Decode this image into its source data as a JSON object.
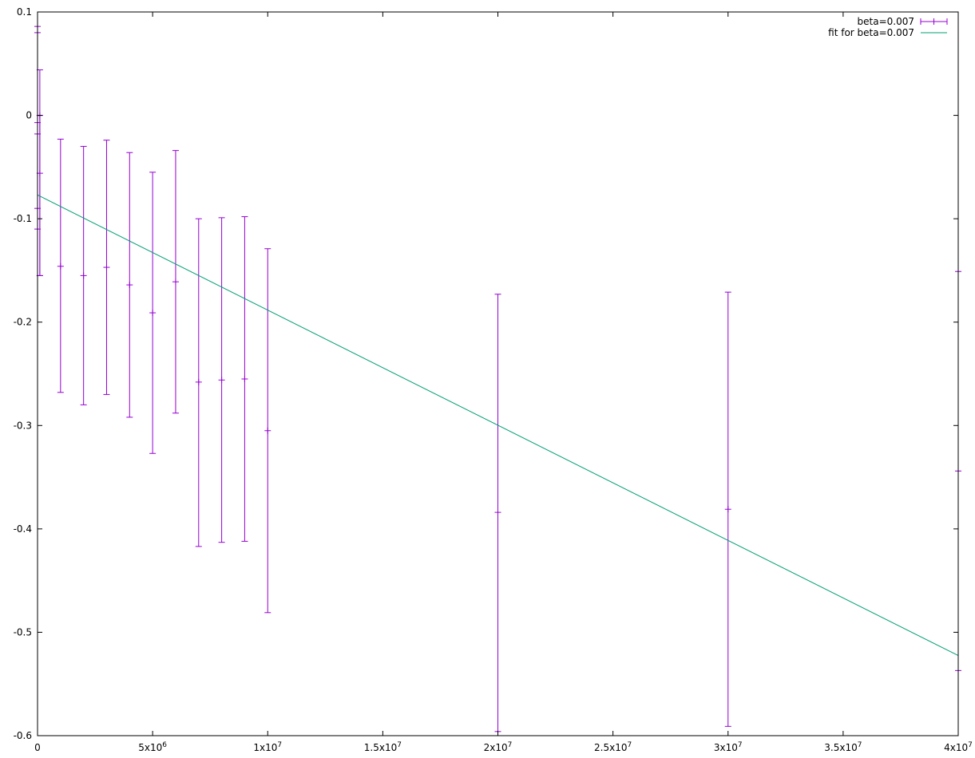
{
  "chart_data": {
    "type": "scatter",
    "title": "",
    "xlabel": "",
    "ylabel": "",
    "xlim": [
      0,
      40000000
    ],
    "ylim": [
      -0.6,
      0.1
    ],
    "grid": false,
    "legend_position": "top-right",
    "x_ticks": [
      {
        "value": 0,
        "label": "0",
        "exp": ""
      },
      {
        "value": 5000000,
        "label": "5x10",
        "exp": "6"
      },
      {
        "value": 10000000,
        "label": "1x10",
        "exp": "7"
      },
      {
        "value": 15000000,
        "label": "1.5x10",
        "exp": "7"
      },
      {
        "value": 20000000,
        "label": "2x10",
        "exp": "7"
      },
      {
        "value": 25000000,
        "label": "2.5x10",
        "exp": "7"
      },
      {
        "value": 30000000,
        "label": "3x10",
        "exp": "7"
      },
      {
        "value": 35000000,
        "label": "3.5x10",
        "exp": "7"
      },
      {
        "value": 40000000,
        "label": "4x10",
        "exp": "7"
      }
    ],
    "y_ticks": [
      {
        "value": 0.1,
        "label": "0.1"
      },
      {
        "value": 0,
        "label": "0"
      },
      {
        "value": -0.1,
        "label": "-0.1"
      },
      {
        "value": -0.2,
        "label": "-0.2"
      },
      {
        "value": -0.3,
        "label": "-0.3"
      },
      {
        "value": -0.4,
        "label": "-0.4"
      },
      {
        "value": -0.5,
        "label": "-0.5"
      },
      {
        "value": -0.6,
        "label": "-0.6"
      }
    ],
    "series": [
      {
        "name": "beta=0.007",
        "kind": "errorbars",
        "color": "#9400d3",
        "points": [
          {
            "x": 0,
            "y": -0.018,
            "ylow": -0.11,
            "yhigh": 0.086
          },
          {
            "x": 0,
            "y": -0.007,
            "ylow": -0.09,
            "yhigh": 0.08
          },
          {
            "x": 100000,
            "y": 0.0,
            "ylow": -0.155,
            "yhigh": 0.044
          },
          {
            "x": 100000,
            "y": -0.056,
            "ylow": -0.155,
            "yhigh": 0.0
          },
          {
            "x": 1000000,
            "y": -0.146,
            "ylow": -0.268,
            "yhigh": -0.023
          },
          {
            "x": 2000000,
            "y": -0.155,
            "ylow": -0.28,
            "yhigh": -0.03
          },
          {
            "x": 3000000,
            "y": -0.147,
            "ylow": -0.27,
            "yhigh": -0.024
          },
          {
            "x": 4000000,
            "y": -0.164,
            "ylow": -0.292,
            "yhigh": -0.036
          },
          {
            "x": 5000000,
            "y": -0.191,
            "ylow": -0.327,
            "yhigh": -0.055
          },
          {
            "x": 6000000,
            "y": -0.161,
            "ylow": -0.288,
            "yhigh": -0.034
          },
          {
            "x": 7000000,
            "y": -0.258,
            "ylow": -0.417,
            "yhigh": -0.1
          },
          {
            "x": 8000000,
            "y": -0.256,
            "ylow": -0.413,
            "yhigh": -0.099
          },
          {
            "x": 9000000,
            "y": -0.255,
            "ylow": -0.412,
            "yhigh": -0.098
          },
          {
            "x": 10000000,
            "y": -0.305,
            "ylow": -0.481,
            "yhigh": -0.129
          },
          {
            "x": 20000000,
            "y": -0.384,
            "ylow": -0.596,
            "yhigh": -0.173
          },
          {
            "x": 30000000,
            "y": -0.381,
            "ylow": -0.591,
            "yhigh": -0.171
          },
          {
            "x": 40000000,
            "y": -0.344,
            "ylow": -0.537,
            "yhigh": -0.151
          }
        ]
      },
      {
        "name": "fit for beta=0.007",
        "kind": "line",
        "color": "#009e73",
        "points": [
          {
            "x": 0,
            "y": -0.077
          },
          {
            "x": 40000000,
            "y": -0.5225
          }
        ]
      }
    ]
  }
}
